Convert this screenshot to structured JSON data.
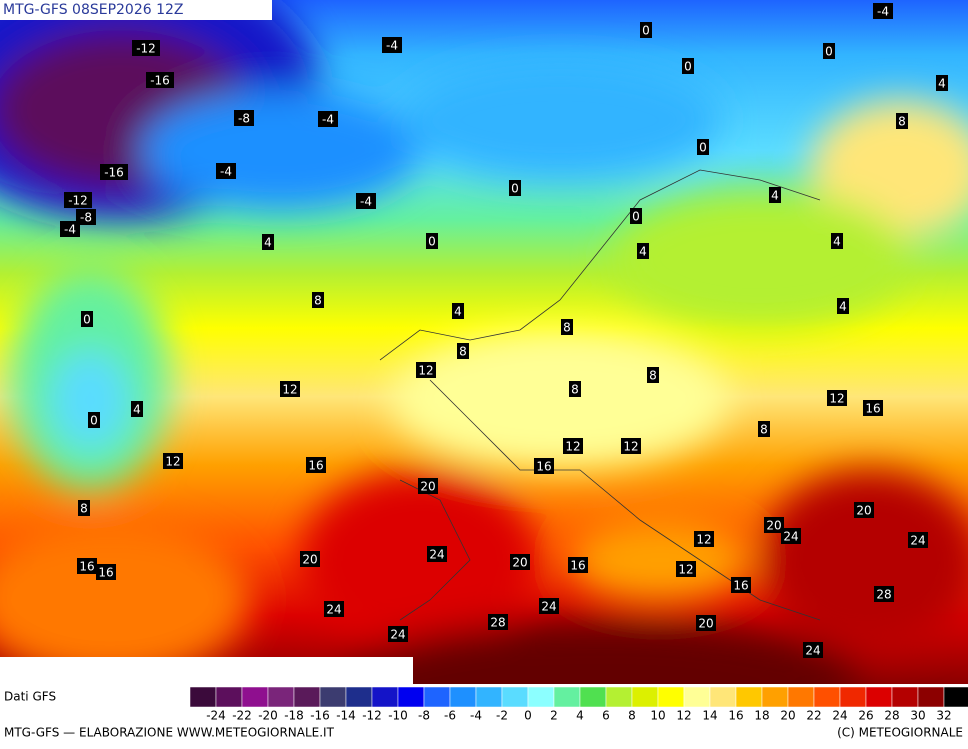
{
  "header": {
    "title": "MTG-GFS 08SEP2026 12Z"
  },
  "contour_labels": [
    -12,
    -4,
    -16,
    -8,
    -4,
    -16,
    -4,
    -12,
    -8,
    -4,
    -4,
    4,
    0,
    0,
    0,
    0,
    0,
    -4,
    4,
    8,
    0,
    4,
    0,
    4,
    4,
    4,
    8,
    4,
    0,
    8,
    8,
    12,
    12,
    8,
    8,
    4,
    0,
    12,
    16,
    8,
    12,
    12,
    12,
    16,
    16,
    20,
    8,
    20,
    24,
    20,
    24,
    12,
    24,
    20,
    16,
    20,
    16,
    16,
    12,
    16,
    28,
    24,
    24,
    28,
    20,
    24,
    24
  ],
  "colorbar": {
    "colors": [
      "#3b0a3b",
      "#5c0f5c",
      "#8f0f8f",
      "#7a257a",
      "#5a1a5a",
      "#3c3c70",
      "#1e2e8c",
      "#1414c8",
      "#0000f0",
      "#1e64ff",
      "#1e90ff",
      "#32b4ff",
      "#5adcff",
      "#8cffff",
      "#64f0a0",
      "#50e050",
      "#b4f032",
      "#dcf000",
      "#ffff00",
      "#ffff96",
      "#ffe678",
      "#ffc800",
      "#ffa000",
      "#ff7800",
      "#ff5000",
      "#f02800",
      "#dc0000",
      "#b40000",
      "#8c0000",
      "#000000"
    ],
    "labels": [
      -24,
      -22,
      -20,
      -18,
      -16,
      -14,
      -12,
      -10,
      -8,
      -6,
      -4,
      -2,
      0,
      2,
      4,
      6,
      8,
      10,
      12,
      14,
      16,
      18,
      20,
      22,
      24,
      26,
      28,
      30,
      32
    ]
  },
  "footer": {
    "source": "Dati GFS",
    "credit": "MTG-GFS — ELABORAZIONE WWW.METEOGIORNALE.IT",
    "copyright": "(C) METEOGIORNALE"
  }
}
